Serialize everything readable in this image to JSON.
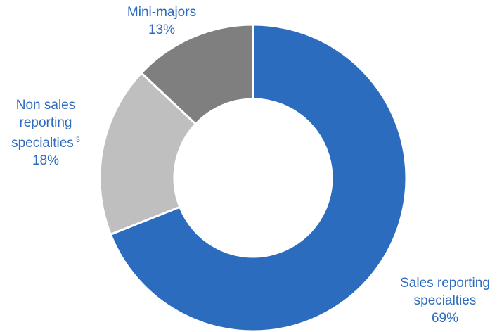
{
  "chart_data": {
    "type": "donut",
    "categories": [
      "Sales reporting specialties",
      "Non sales reporting specialties",
      "Mini-majors"
    ],
    "label_notes": [
      null,
      "3",
      null
    ],
    "values": [
      69,
      18,
      13
    ],
    "value_labels": [
      "69%",
      "18%",
      "13%"
    ],
    "colors": [
      "#2b6cbf",
      "#bfbfbf",
      "#7f7f7f"
    ]
  }
}
